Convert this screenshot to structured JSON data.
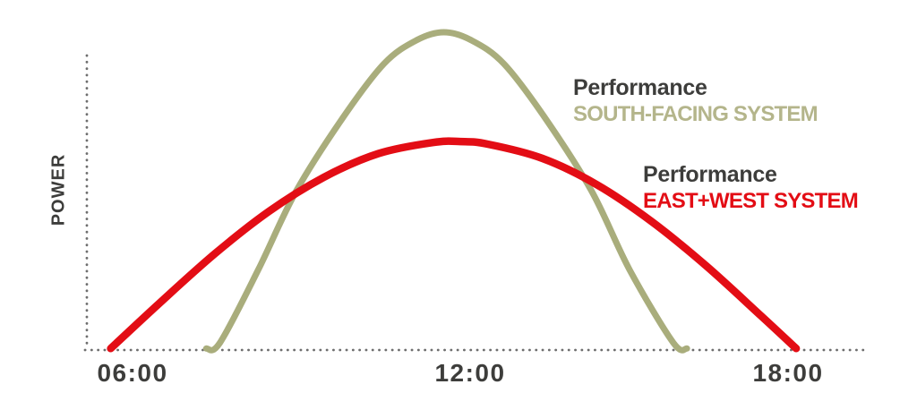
{
  "colors": {
    "text_dark": "#3d3d3b",
    "south_green_curve": "#a9ad7c",
    "south_green_text": "#b4b58b",
    "east_west_red": "#e30d15",
    "axis_dots": "#6e6e6e",
    "background": "#ffffff"
  },
  "legend": {
    "south": {
      "line1": "Performance",
      "line2": "SOUTH-FACING SYSTEM"
    },
    "east_west": {
      "line1": "Performance",
      "line2": "EAST+WEST SYSTEM"
    }
  },
  "chart_data": {
    "type": "line",
    "title": "",
    "xlabel": "",
    "ylabel": "POWER",
    "x_ticks": [
      "06:00",
      "12:00",
      "18:00"
    ],
    "x_tick_hours": [
      6,
      12,
      18
    ],
    "x_axis_hours_range": [
      5.1,
      19.4
    ],
    "ylim": [
      0,
      1.08
    ],
    "y_units": "relative power (unlabeled qualitative axis)",
    "grid": "off",
    "axis_style": "dotted",
    "legend_position": "inline-right",
    "series": [
      {
        "name": "SOUTH-FACING SYSTEM",
        "label_line1": "Performance",
        "label_line2": "SOUTH-FACING SYSTEM",
        "color": "#a9ad7c",
        "shape": "tall narrow bell peaking near noon",
        "hours": [
          7.35,
          7.6,
          8.3,
          9.0,
          9.85,
          10.6,
          11.2,
          11.7,
          12.2,
          12.8,
          13.55,
          14.4,
          15.1,
          15.9,
          16.15
        ],
        "power": [
          0.002,
          0.02,
          0.25,
          0.5,
          0.73,
          0.9,
          0.975,
          1.0,
          0.975,
          0.9,
          0.73,
          0.5,
          0.25,
          0.02,
          0.002
        ]
      },
      {
        "name": "EAST+WEST SYSTEM",
        "label_line1": "Performance",
        "label_line2": "EAST+WEST SYSTEM",
        "color": "#e30d15",
        "shape": "broad flat arch from early morning to evening",
        "hours": [
          5.6,
          6.5,
          7.5,
          8.5,
          9.5,
          10.5,
          11.5,
          12.0,
          12.5,
          13.5,
          14.5,
          15.5,
          16.5,
          17.5,
          18.15
        ],
        "power": [
          0.002,
          0.146,
          0.3,
          0.435,
          0.542,
          0.617,
          0.652,
          0.655,
          0.647,
          0.602,
          0.519,
          0.403,
          0.263,
          0.106,
          0.002
        ]
      }
    ]
  }
}
